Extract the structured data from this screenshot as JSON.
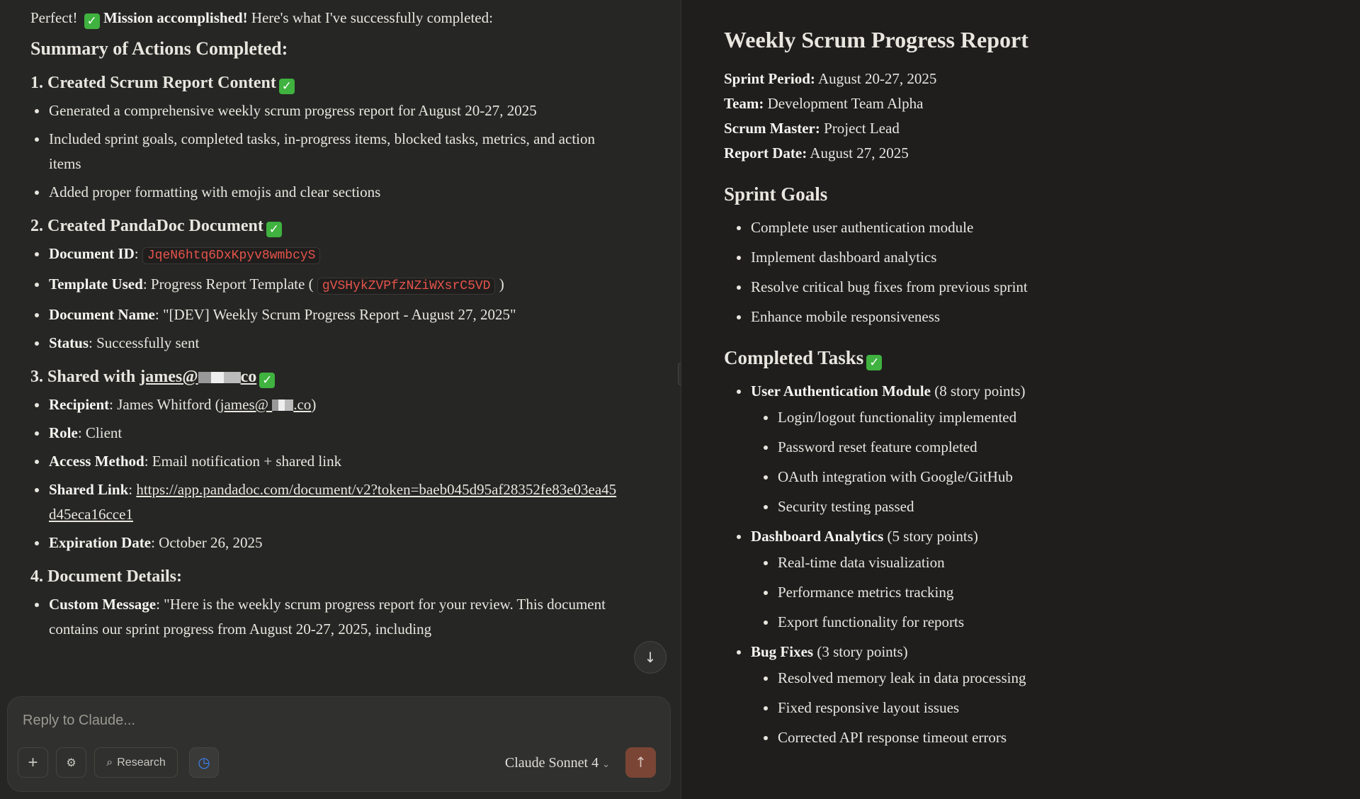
{
  "chat": {
    "intro_prefix": "Perfect!",
    "intro_bold": "Mission accomplished!",
    "intro_suffix": "Here's what I've successfully completed:",
    "summary_heading": "Summary of Actions Completed:",
    "s1": {
      "heading": "1. Created Scrum Report Content",
      "items": [
        "Generated a comprehensive weekly scrum progress report for August 20-27, 2025",
        "Included sprint goals, completed tasks, in-progress items, blocked tasks, metrics, and action items",
        "Added proper formatting with emojis and clear sections"
      ]
    },
    "s2": {
      "heading": "2. Created PandaDoc Document",
      "doc_id_label": "Document ID",
      "doc_id": "JqeN6htq6DxKpyv8wmbcyS",
      "template_label": "Template Used",
      "template_value": "Progress Report Template (",
      "template_id": "gVSHykZVPfzNZiWXsrC5VD",
      "template_close": ")",
      "name_label": "Document Name",
      "name_value": ": \"[DEV] Weekly Scrum Progress Report - August 27, 2025\"",
      "status_label": "Status",
      "status_value": ": Successfully sent"
    },
    "s3": {
      "heading_prefix": "3. Shared with ",
      "heading_email_a": "james@",
      "heading_email_b": "co",
      "recipient_label": "Recipient",
      "recipient_value": ": James Whitford (",
      "recipient_email_a": "james@",
      "recipient_email_b": ".co",
      "recipient_close": ")",
      "role_label": "Role",
      "role_value": ": Client",
      "access_label": "Access Method",
      "access_value": ": Email notification + shared link",
      "link_label": "Shared Link",
      "link_value": "https://app.pandadoc.com/document/v2?token=baeb045d95af28352fe83e03ea45d45eca16cce1",
      "exp_label": "Expiration Date",
      "exp_value": ": October 26, 2025"
    },
    "s4": {
      "heading": "4. Document Details:",
      "msg_label": "Custom Message",
      "msg_value": ": \"Here is the weekly scrum progress report for your review. This document contains our sprint progress from August 20-27, 2025, including"
    }
  },
  "composer": {
    "placeholder": "Reply to Claude...",
    "research_label": "Research",
    "model": "Claude Sonnet 4"
  },
  "report": {
    "title": "Weekly Scrum Progress Report",
    "fields": [
      {
        "label": "Sprint Period:",
        "value": "August 20-27, 2025"
      },
      {
        "label": "Team:",
        "value": "Development Team Alpha"
      },
      {
        "label": "Scrum Master:",
        "value": "Project Lead"
      },
      {
        "label": "Report Date:",
        "value": "August 27, 2025"
      }
    ],
    "goals_heading": "Sprint Goals",
    "goals": [
      "Complete user authentication module",
      "Implement dashboard analytics",
      "Resolve critical bug fixes from previous sprint",
      "Enhance mobile responsiveness"
    ],
    "completed_heading": "Completed Tasks",
    "tasks": [
      {
        "name": "User Authentication Module",
        "points": "(8 story points)",
        "items": [
          "Login/logout functionality implemented",
          "Password reset feature completed",
          "OAuth integration with Google/GitHub",
          "Security testing passed"
        ]
      },
      {
        "name": "Dashboard Analytics",
        "points": "(5 story points)",
        "items": [
          "Real-time data visualization",
          "Performance metrics tracking",
          "Export functionality for reports"
        ]
      },
      {
        "name": "Bug Fixes",
        "points": "(3 story points)",
        "items": [
          "Resolved memory leak in data processing",
          "Fixed responsive layout issues",
          "Corrected API response timeout errors"
        ]
      }
    ]
  },
  "colors": {
    "accent": "#7a4535",
    "code": "#e5534b",
    "check": "#3fb23f"
  }
}
